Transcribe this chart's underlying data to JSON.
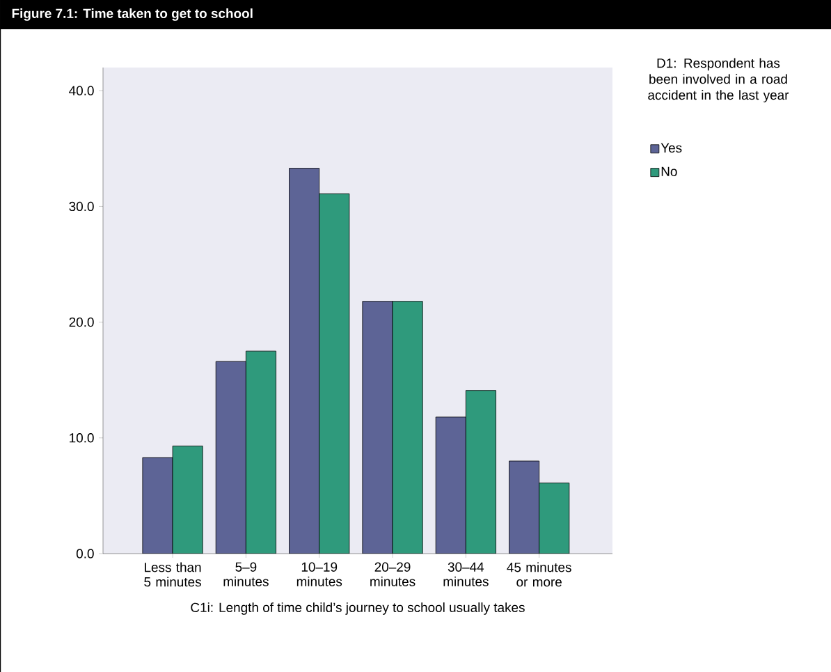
{
  "chart_data": {
    "type": "bar",
    "title": "Figure 7.1: Time taken to get to school",
    "xlabel": "C1i: Length of time child’s journey to school usually takes",
    "legend_title": "D1: Respondent has been involved in a road accident in the last year",
    "categories": [
      "Less than 5 minutes",
      "5–9 minutes",
      "10–19 minutes",
      "20–29 minutes",
      "30–44 minutes",
      "45 minutes or more"
    ],
    "series": [
      {
        "name": "Yes",
        "color": "#5d6496",
        "values": [
          8.3,
          16.6,
          33.3,
          21.8,
          11.8,
          8.0
        ]
      },
      {
        "name": "No",
        "color": "#2f9a7c",
        "values": [
          9.3,
          17.5,
          31.1,
          21.8,
          14.1,
          6.1
        ]
      }
    ],
    "ylim": [
      0,
      42
    ],
    "yticks": [
      {
        "value": 0,
        "label": "0.0"
      },
      {
        "value": 10,
        "label": "10.0"
      },
      {
        "value": 20,
        "label": "20.0"
      },
      {
        "value": 30,
        "label": "30.0"
      },
      {
        "value": 40,
        "label": "40.0"
      }
    ],
    "grid": false,
    "legend": "right"
  }
}
